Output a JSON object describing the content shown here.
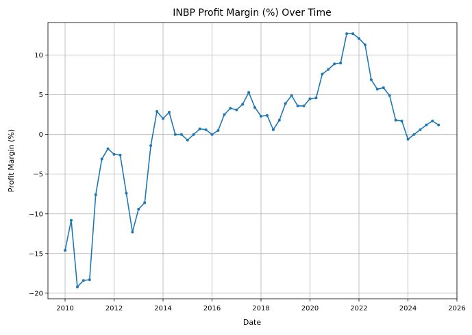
{
  "chart_data": {
    "type": "line",
    "title": "INBP Profit Margin (%) Over Time",
    "xlabel": "Date",
    "ylabel": "Profit Margin (%)",
    "xlim": [
      2009.3,
      2026.0
    ],
    "ylim": [
      -20.7,
      14.1
    ],
    "x_ticks": [
      2010,
      2012,
      2014,
      2016,
      2018,
      2020,
      2022,
      2024,
      2026
    ],
    "y_ticks": [
      -20,
      -15,
      -10,
      -5,
      0,
      5,
      10
    ],
    "grid": true,
    "line_color": "#1f77b4",
    "series": [
      {
        "points": [
          [
            2010.0,
            -14.6
          ],
          [
            2010.25,
            -10.8
          ],
          [
            2010.5,
            -19.2
          ],
          [
            2010.75,
            -18.4
          ],
          [
            2011.0,
            -18.3
          ],
          [
            2011.25,
            -7.6
          ],
          [
            2011.5,
            -3.1
          ],
          [
            2011.75,
            -1.8
          ],
          [
            2012.0,
            -2.5
          ],
          [
            2012.25,
            -2.6
          ],
          [
            2012.5,
            -7.4
          ],
          [
            2012.75,
            -12.3
          ],
          [
            2013.0,
            -9.4
          ],
          [
            2013.25,
            -8.6
          ],
          [
            2013.5,
            -1.4
          ],
          [
            2013.75,
            2.9
          ],
          [
            2014.0,
            2.0
          ],
          [
            2014.25,
            2.8
          ],
          [
            2014.5,
            0.0
          ],
          [
            2014.75,
            0.0
          ],
          [
            2015.0,
            -0.7
          ],
          [
            2015.25,
            0.0
          ],
          [
            2015.5,
            0.7
          ],
          [
            2015.75,
            0.6
          ],
          [
            2016.0,
            0.0
          ],
          [
            2016.25,
            0.5
          ],
          [
            2016.5,
            2.5
          ],
          [
            2016.75,
            3.3
          ],
          [
            2017.0,
            3.1
          ],
          [
            2017.25,
            3.8
          ],
          [
            2017.5,
            5.3
          ],
          [
            2017.75,
            3.4
          ],
          [
            2018.0,
            2.3
          ],
          [
            2018.25,
            2.4
          ],
          [
            2018.5,
            0.6
          ],
          [
            2018.75,
            1.8
          ],
          [
            2019.0,
            3.9
          ],
          [
            2019.25,
            4.9
          ],
          [
            2019.5,
            3.6
          ],
          [
            2019.75,
            3.6
          ],
          [
            2020.0,
            4.5
          ],
          [
            2020.25,
            4.6
          ],
          [
            2020.5,
            7.6
          ],
          [
            2020.75,
            8.2
          ],
          [
            2021.0,
            8.9
          ],
          [
            2021.25,
            9.0
          ],
          [
            2021.5,
            12.7
          ],
          [
            2021.75,
            12.7
          ],
          [
            2022.0,
            12.1
          ],
          [
            2022.25,
            11.3
          ],
          [
            2022.5,
            6.9
          ],
          [
            2022.75,
            5.7
          ],
          [
            2023.0,
            5.9
          ],
          [
            2023.25,
            4.9
          ],
          [
            2023.5,
            1.8
          ],
          [
            2023.75,
            1.7
          ],
          [
            2024.0,
            -0.6
          ],
          [
            2024.25,
            0.0
          ],
          [
            2024.5,
            0.6
          ],
          [
            2024.75,
            1.2
          ],
          [
            2025.0,
            1.7
          ],
          [
            2025.25,
            1.2
          ]
        ]
      }
    ]
  }
}
